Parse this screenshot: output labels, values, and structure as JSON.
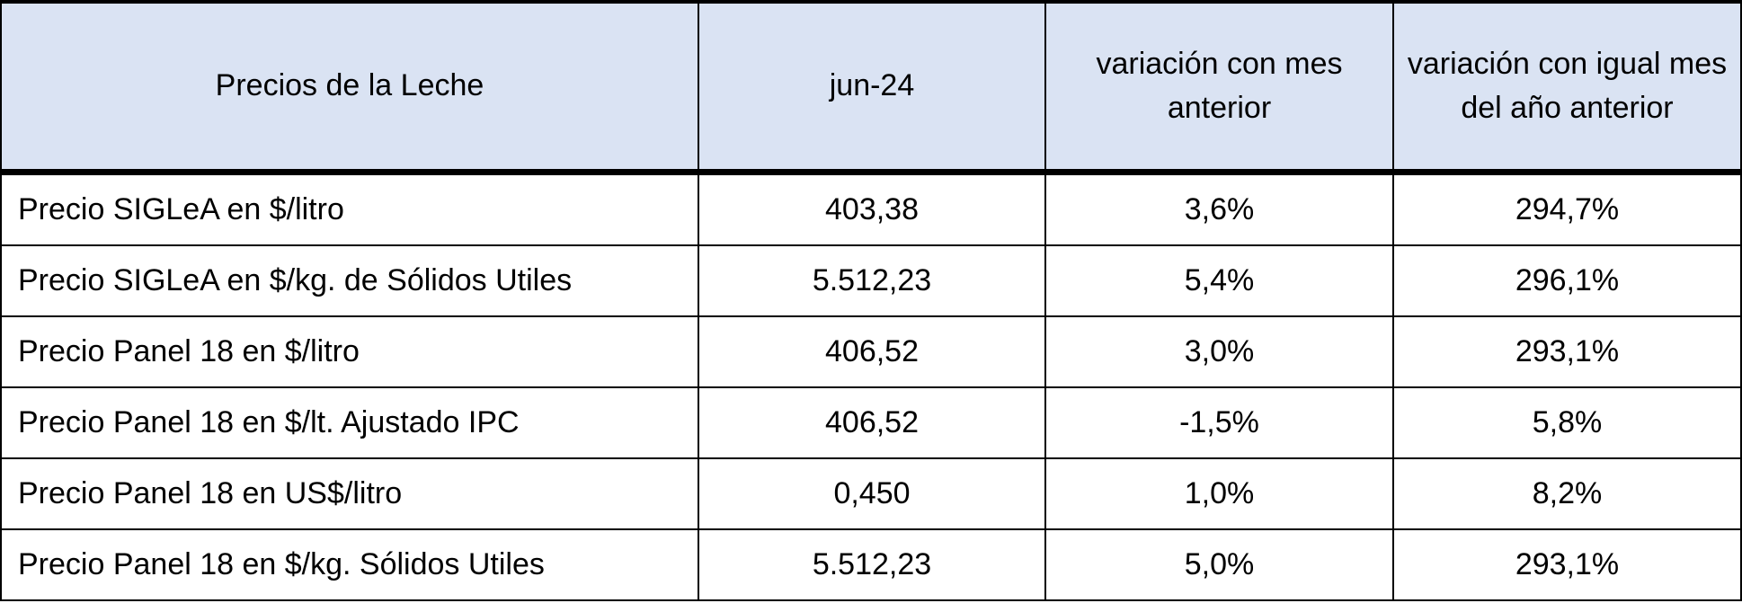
{
  "table": {
    "header": [
      "Precios de la Leche",
      "jun-24",
      "variación con mes anterior",
      "variación con igual mes del año anterior"
    ],
    "rows": [
      [
        "Precio SIGLeA en $/litro",
        "403,38",
        "3,6%",
        "294,7%"
      ],
      [
        "Precio SIGLeA en $/kg. de Sólidos Utiles",
        "5.512,23",
        "5,4%",
        "296,1%"
      ],
      [
        "Precio Panel 18 en $/litro",
        "406,52",
        "3,0%",
        "293,1%"
      ],
      [
        "Precio Panel 18 en $/lt. Ajustado IPC",
        "406,52",
        "-1,5%",
        "5,8%"
      ],
      [
        "Precio Panel 18 en US$/litro",
        "0,450",
        "1,0%",
        "8,2%"
      ],
      [
        "Precio Panel 18 en $/kg. Sólidos Utiles",
        "5.512,23",
        "5,0%",
        "293,1%"
      ]
    ]
  }
}
